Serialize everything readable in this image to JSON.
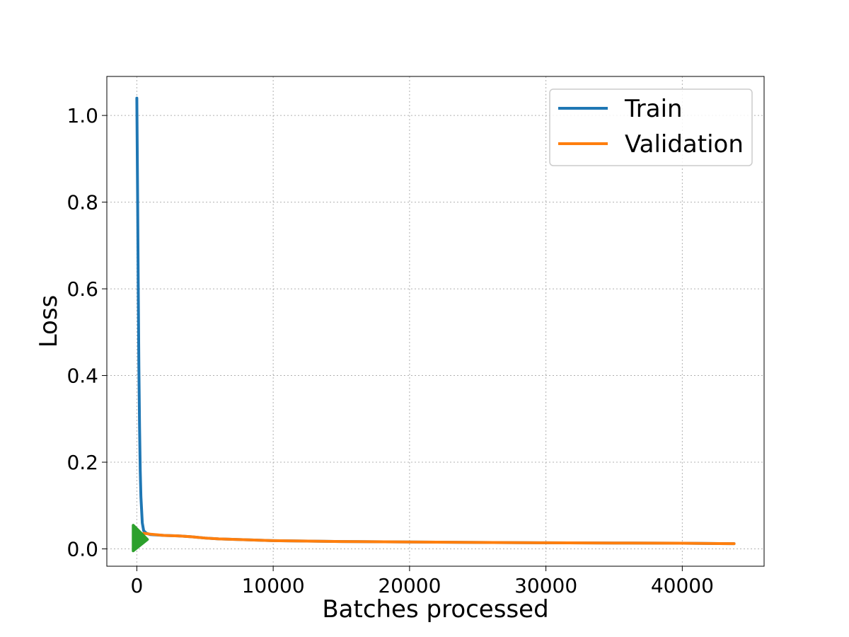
{
  "chart_data": {
    "type": "line",
    "title": "",
    "xlabel": "Batches processed",
    "ylabel": "Loss",
    "xlim": [
      -2200,
      46000
    ],
    "ylim": [
      -0.04,
      1.09
    ],
    "x_ticks": [
      0,
      10000,
      20000,
      30000,
      40000
    ],
    "y_ticks": [
      0.0,
      0.2,
      0.4,
      0.6,
      0.8,
      1.0
    ],
    "x_tick_labels": [
      "0",
      "10000",
      "20000",
      "30000",
      "40000"
    ],
    "y_tick_labels": [
      "0.0",
      "0.2",
      "0.4",
      "0.6",
      "0.8",
      "1.0"
    ],
    "grid": true,
    "legend_position": "top-right",
    "series": [
      {
        "name": "Train",
        "color": "#1f77b4",
        "x": [
          0,
          30,
          60,
          100,
          150,
          200,
          250,
          300,
          400,
          500,
          700,
          1000,
          2000,
          3000,
          4000,
          5000,
          6000,
          8000,
          10000,
          15000,
          20000,
          25000,
          30000,
          35000,
          40000,
          43800
        ],
        "y": [
          1.04,
          0.92,
          0.8,
          0.62,
          0.42,
          0.28,
          0.18,
          0.12,
          0.06,
          0.042,
          0.036,
          0.033,
          0.031,
          0.03,
          0.028,
          0.025,
          0.023,
          0.021,
          0.019,
          0.017,
          0.016,
          0.015,
          0.014,
          0.0135,
          0.013,
          0.012
        ]
      },
      {
        "name": "Validation",
        "color": "#ff7f0e",
        "x": [
          500,
          1000,
          2000,
          3000,
          4000,
          5000,
          6000,
          8000,
          10000,
          15000,
          20000,
          25000,
          30000,
          35000,
          40000,
          43800
        ],
        "y": [
          0.036,
          0.034,
          0.031,
          0.03,
          0.028,
          0.025,
          0.023,
          0.021,
          0.019,
          0.017,
          0.016,
          0.015,
          0.014,
          0.0135,
          0.013,
          0.012
        ]
      }
    ],
    "annotation_marker": {
      "color": "#2ca02c",
      "shape": "triangle-right",
      "x": 150,
      "y": 0.025
    }
  }
}
